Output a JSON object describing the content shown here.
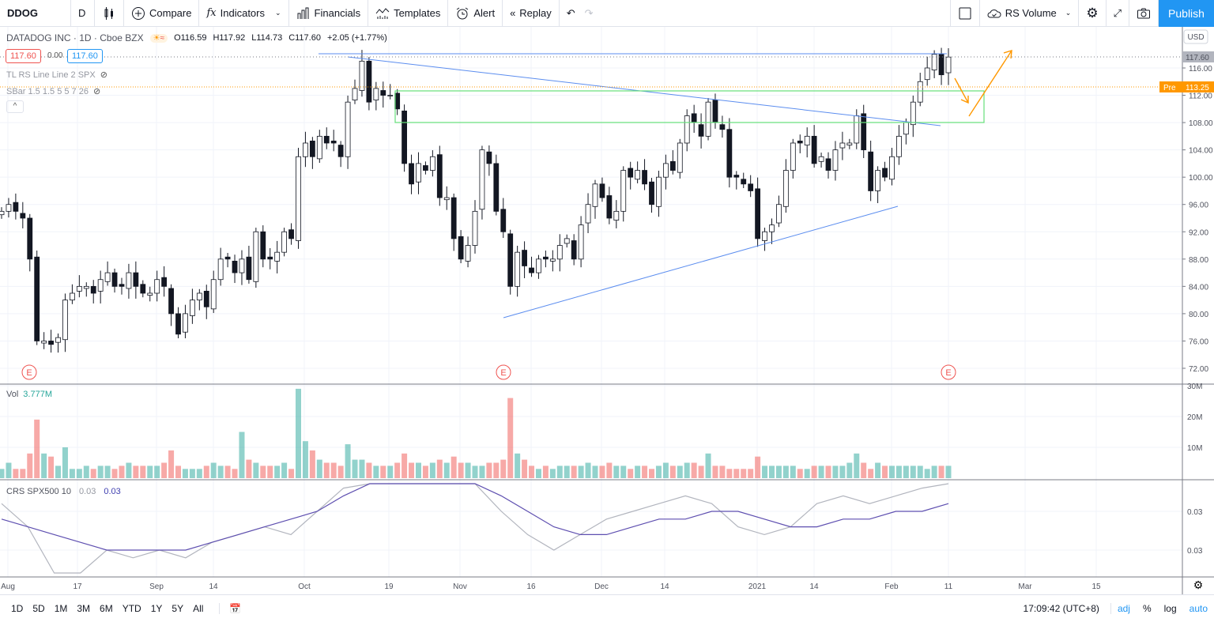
{
  "toolbar": {
    "symbol": "DDOG",
    "interval": "D",
    "compare": "Compare",
    "indicators": "Indicators",
    "financials": "Financials",
    "templates": "Templates",
    "alert": "Alert",
    "replay": "Replay",
    "layout": "RS Volume",
    "publish": "Publish"
  },
  "legend": {
    "title": "DATADOG INC · 1D · Cboe BZX",
    "open": "O116.59",
    "high": "H117.92",
    "low": "L114.73",
    "close": "C117.60",
    "change": "+2.05 (+1.77%)",
    "bid": "117.60",
    "spread": "0.00",
    "ask": "117.60",
    "ind1": "TL RS Line Line 2 SPX",
    "ind2": "SBar 1.5 1.5 5 5 7 26"
  },
  "axis": {
    "currency": "USD",
    "last_price": "117.60",
    "pre_label": "Pre",
    "pre_price": "113.25",
    "price_ticks": [
      "116.00",
      "112.00",
      "108.00",
      "104.00",
      "100.00",
      "96.00",
      "92.00",
      "88.00",
      "84.00",
      "80.00",
      "76.00",
      "72.00"
    ],
    "vol_ticks": [
      "30M",
      "20M",
      "10M"
    ],
    "crs_ticks": [
      "0.03",
      "0.03"
    ],
    "time_ticks": [
      "Aug",
      "17",
      "Sep",
      "14",
      "Oct",
      "19",
      "Nov",
      "16",
      "Dec",
      "14",
      "2021",
      "14",
      "Feb",
      "11",
      "Mar",
      "15"
    ],
    "earnings_marker": "E"
  },
  "volume_pane": {
    "label": "Vol",
    "value": "3.777M"
  },
  "crs_pane": {
    "label": "CRS SPX500 10",
    "value1": "0.03",
    "value2": "0.03"
  },
  "bottombar": {
    "ranges": [
      "1D",
      "5D",
      "1M",
      "3M",
      "6M",
      "YTD",
      "1Y",
      "5Y",
      "All"
    ],
    "time": "17:09:42 (UTC+8)",
    "adj": "adj",
    "percent": "%",
    "log": "log",
    "auto": "auto"
  },
  "colors": {
    "up": "#26a69a",
    "down": "#ef5350",
    "accent": "#2196f3",
    "pre": "#ff9800"
  },
  "chart_data": {
    "type": "candlestick",
    "close": [
      95,
      96,
      95,
      94,
      88,
      76,
      76,
      75.5,
      76.5,
      82,
      83,
      84,
      84,
      83,
      85,
      86,
      84,
      84,
      86,
      84,
      83,
      83,
      85,
      84,
      80,
      77,
      80,
      82,
      83,
      81,
      85,
      88,
      88,
      86,
      88,
      85,
      92,
      88,
      88,
      89,
      92,
      91,
      103,
      105,
      103,
      106,
      105,
      105,
      103,
      111,
      113,
      117,
      111,
      113,
      112,
      112,
      110,
      102,
      99,
      102,
      101,
      103,
      97,
      97,
      91,
      88,
      90,
      95,
      104,
      102,
      95,
      92,
      84,
      89,
      87,
      86,
      88,
      88,
      88,
      90,
      91,
      88,
      93,
      96,
      99,
      97,
      94,
      95,
      101,
      100,
      101,
      99,
      96,
      100,
      102,
      101,
      105,
      109,
      108,
      106,
      111,
      108,
      107,
      100,
      100,
      99,
      98,
      91,
      92,
      93,
      96,
      101,
      105,
      105,
      106,
      102,
      103,
      101,
      104,
      105,
      105,
      109,
      104,
      98,
      101,
      100,
      103,
      106,
      108,
      111,
      114,
      116,
      118,
      115,
      117.6
    ],
    "volume_m": [
      3,
      5,
      3,
      3,
      8,
      19,
      8,
      7,
      4,
      10,
      3,
      3,
      4,
      3,
      4,
      4,
      3,
      4,
      5,
      4,
      4,
      4,
      4,
      5,
      9,
      4,
      3,
      3,
      3,
      4,
      5,
      4,
      4,
      3,
      15,
      6,
      5,
      4,
      4,
      4,
      5,
      3,
      29,
      12,
      9,
      6,
      5,
      5,
      4,
      11,
      6,
      6,
      5,
      4,
      4,
      4,
      5,
      8,
      5,
      5,
      4,
      5,
      6,
      5,
      7,
      5,
      5,
      4,
      4,
      5,
      5,
      6,
      26,
      8,
      6,
      4,
      3,
      4,
      3,
      4,
      4,
      4,
      4,
      5,
      4,
      4,
      5,
      4,
      4,
      3,
      4,
      4,
      3,
      4,
      5,
      4,
      4,
      5,
      5,
      4,
      8,
      4,
      4,
      3,
      3,
      3,
      3,
      7,
      4,
      4,
      4,
      4,
      4,
      3,
      3,
      4,
      4,
      4,
      4,
      4,
      5,
      8,
      5,
      3,
      5,
      4,
      4,
      4,
      4,
      4,
      4,
      3,
      4,
      4,
      4,
      3,
      4
    ],
    "crs_raw": [
      0.034,
      0.031,
      0.024,
      0.025,
      0.028,
      0.027,
      0.028,
      0.027,
      0.029,
      0.03,
      0.031,
      0.03,
      0.033,
      0.036,
      0.04,
      0.042,
      0.038,
      0.039,
      0.037,
      0.033,
      0.03,
      0.028,
      0.03,
      0.032,
      0.033,
      0.034,
      0.035,
      0.034,
      0.031,
      0.03,
      0.031,
      0.034,
      0.035,
      0.034,
      0.035,
      0.036,
      0.037
    ],
    "crs_ma": [
      0.032,
      0.031,
      0.03,
      0.029,
      0.028,
      0.028,
      0.028,
      0.028,
      0.029,
      0.03,
      0.031,
      0.032,
      0.033,
      0.035,
      0.037,
      0.039,
      0.039,
      0.038,
      0.037,
      0.035,
      0.033,
      0.031,
      0.03,
      0.03,
      0.031,
      0.032,
      0.032,
      0.033,
      0.033,
      0.032,
      0.031,
      0.031,
      0.032,
      0.032,
      0.033,
      0.033,
      0.034
    ],
    "price_range": [
      70,
      120
    ],
    "volume_range_m": [
      0,
      30
    ]
  }
}
